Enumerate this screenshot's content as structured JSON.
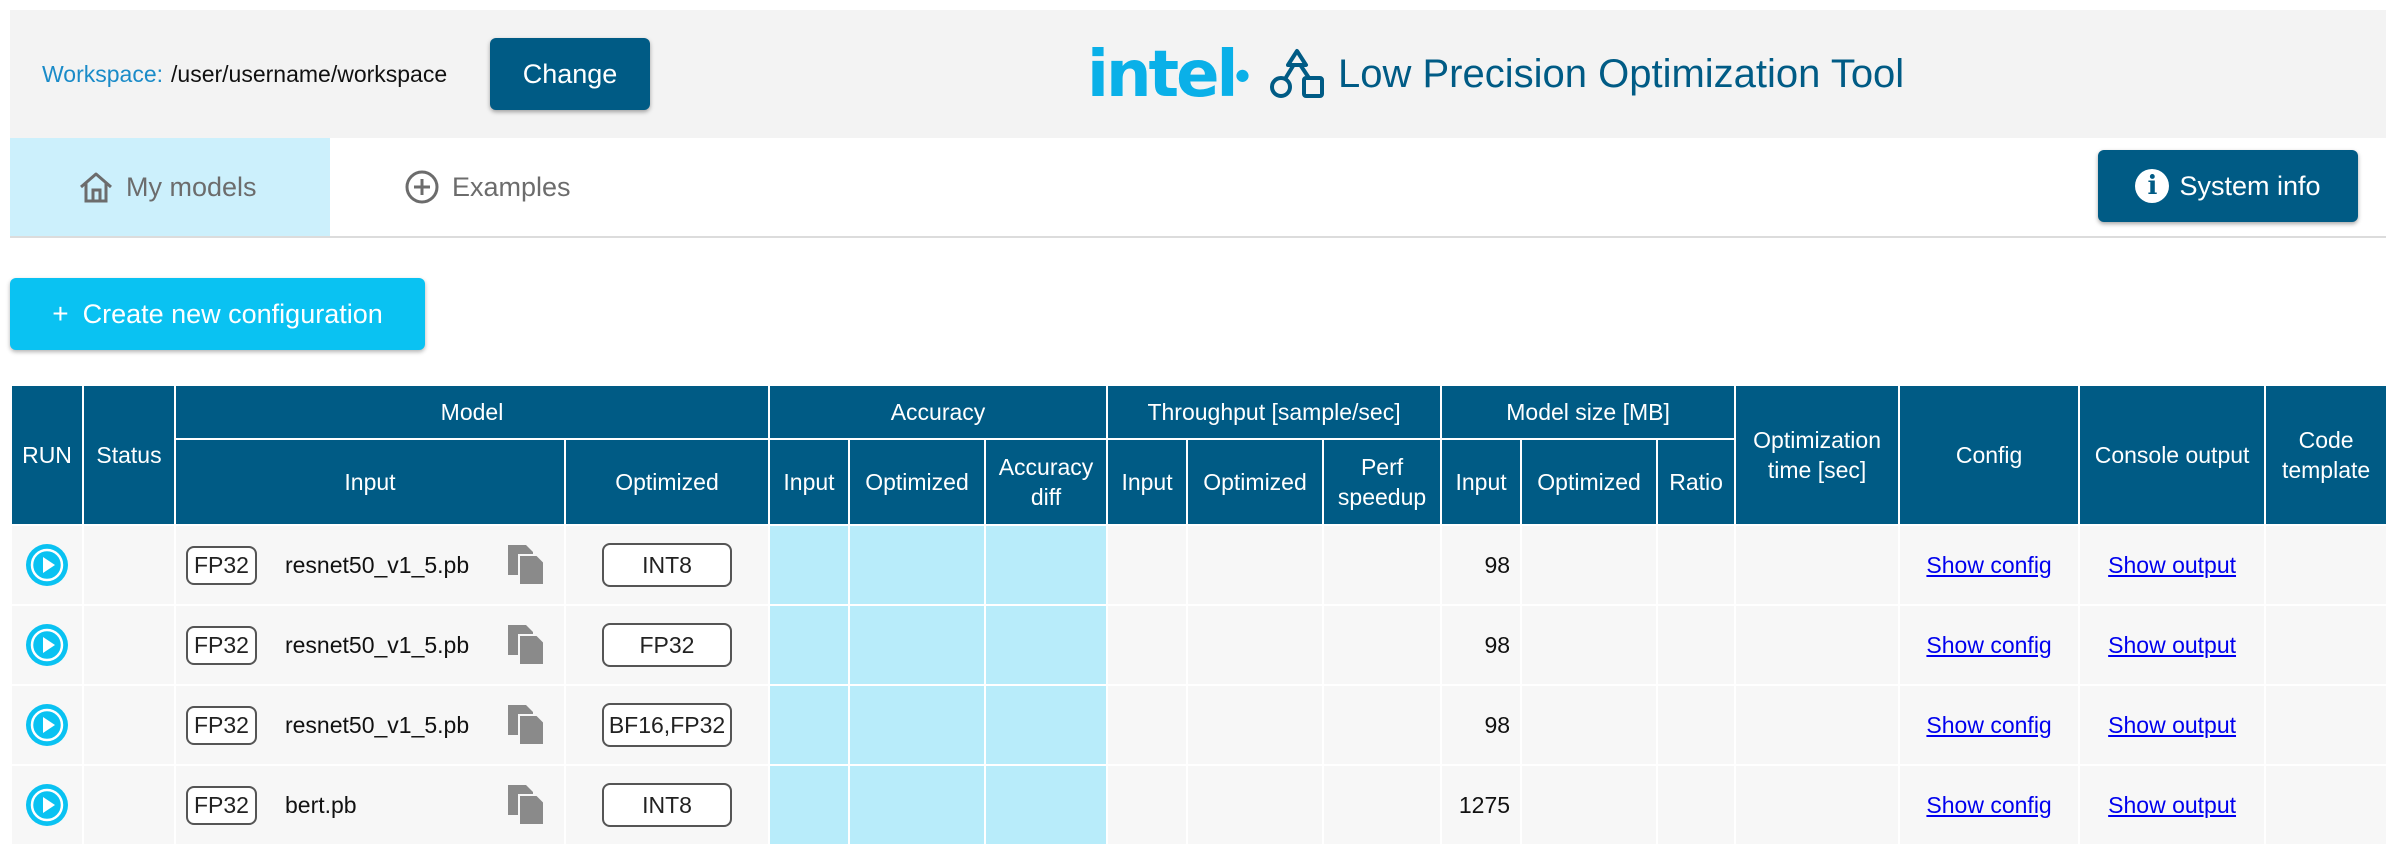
{
  "header": {
    "workspace_label": "Workspace:",
    "workspace_path": "/user/username/workspace",
    "change_label": "Change",
    "logo_text": "intel",
    "app_title": "Low Precision Optimization Tool",
    "colors": {
      "primary": "#005b85",
      "accent": "#0ac2f2",
      "logo": "#0ab0e8"
    }
  },
  "tabs": [
    {
      "label": "My models",
      "icon": "home-icon",
      "active": true
    },
    {
      "label": "Examples",
      "icon": "plus-circle-icon",
      "active": false
    }
  ],
  "system_info_label": "System info",
  "create_label": "Create new configuration",
  "table": {
    "groups": {
      "run": "RUN",
      "status": "Status",
      "model": "Model",
      "accuracy": "Accuracy",
      "throughput": "Throughput [sample/sec]",
      "model_size": "Model size [MB]",
      "opt_time": "Optimization time [sec]",
      "config": "Config",
      "console": "Console output",
      "code": "Code template"
    },
    "sub": {
      "model_input": "Input",
      "model_optimized": "Optimized",
      "acc_input": "Input",
      "acc_optimized": "Optimized",
      "acc_diff": "Accuracy diff",
      "thr_input": "Input",
      "thr_optimized": "Optimized",
      "thr_speedup": "Perf speedup",
      "size_input": "Input",
      "size_optimized": "Optimized",
      "size_ratio": "Ratio"
    },
    "rows": [
      {
        "input_precision": "FP32",
        "model": "resnet50_v1_5.pb",
        "optimized_precision": "INT8",
        "size_input": "98",
        "config_link": "Show config",
        "output_link": "Show output"
      },
      {
        "input_precision": "FP32",
        "model": "resnet50_v1_5.pb",
        "optimized_precision": "FP32",
        "size_input": "98",
        "config_link": "Show config",
        "output_link": "Show output"
      },
      {
        "input_precision": "FP32",
        "model": "resnet50_v1_5.pb",
        "optimized_precision": "BF16,FP32",
        "size_input": "98",
        "config_link": "Show config",
        "output_link": "Show output"
      },
      {
        "input_precision": "FP32",
        "model": "bert.pb",
        "optimized_precision": "INT8",
        "size_input": "1275",
        "config_link": "Show config",
        "output_link": "Show output"
      }
    ]
  }
}
